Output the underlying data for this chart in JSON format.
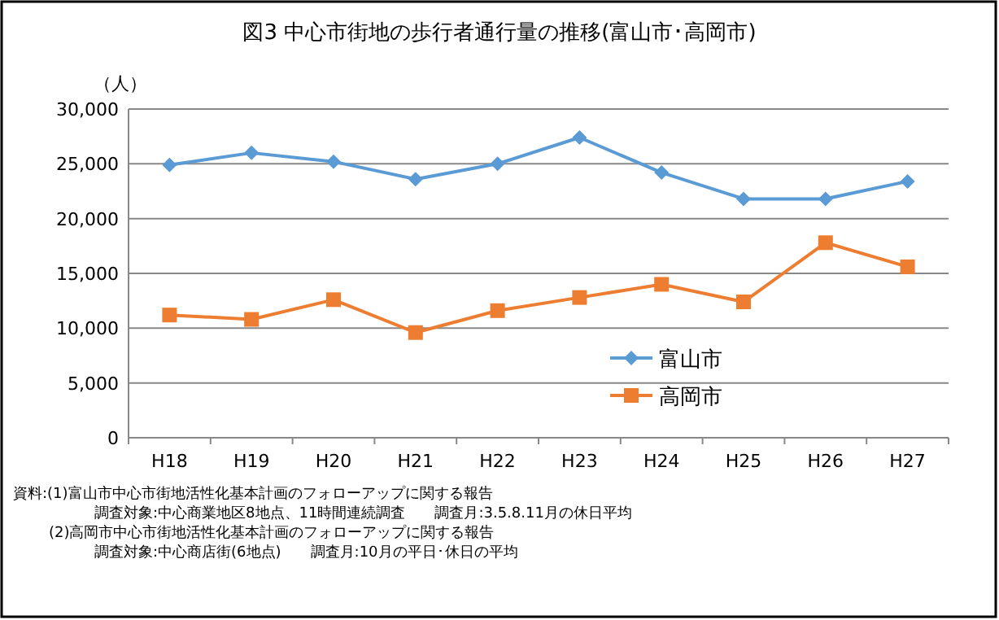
{
  "chart_data": {
    "type": "line",
    "title": "図3  中心市街地の歩行者通行量の推移(富山市･高岡市)",
    "ylabel": "（人）",
    "categories": [
      "H18",
      "H19",
      "H20",
      "H21",
      "H22",
      "H23",
      "H24",
      "H25",
      "H26",
      "H27"
    ],
    "series": [
      {
        "name": "富山市",
        "color": "#5b9bd5",
        "marker": "diamond",
        "values": [
          24900,
          26000,
          25200,
          23600,
          25000,
          27400,
          24200,
          21800,
          21800,
          23400
        ]
      },
      {
        "name": "高岡市",
        "color": "#ed7d31",
        "marker": "square",
        "values": [
          11200,
          10800,
          12600,
          9600,
          11600,
          12800,
          14000,
          12400,
          17800,
          15600
        ]
      }
    ],
    "ylim": [
      0,
      30000
    ],
    "yticks": [
      {
        "value": 0,
        "label": "0"
      },
      {
        "value": 5000,
        "label": "5,000"
      },
      {
        "value": 10000,
        "label": "10,000"
      },
      {
        "value": 15000,
        "label": "15,000"
      },
      {
        "value": 20000,
        "label": "20,000"
      },
      {
        "value": 25000,
        "label": "25,000"
      },
      {
        "value": 30000,
        "label": "30,000"
      }
    ],
    "grid": "y",
    "legend": "bottom right",
    "line_style": "solid",
    "annotations": [
      "資料:(1)富山市中心市街地活性化基本計画のフォローアップに関する報告",
      "調査対象:中心商業地区8地点、11時間連続調査　　調査月:3.5.8.11月の休日平均",
      "(2)高岡市中心市街地活性化基本計画のフォローアップに関する報告",
      "調査対象:中心商店街(6地点)　　調査月:10月の平日･休日の平均"
    ]
  }
}
